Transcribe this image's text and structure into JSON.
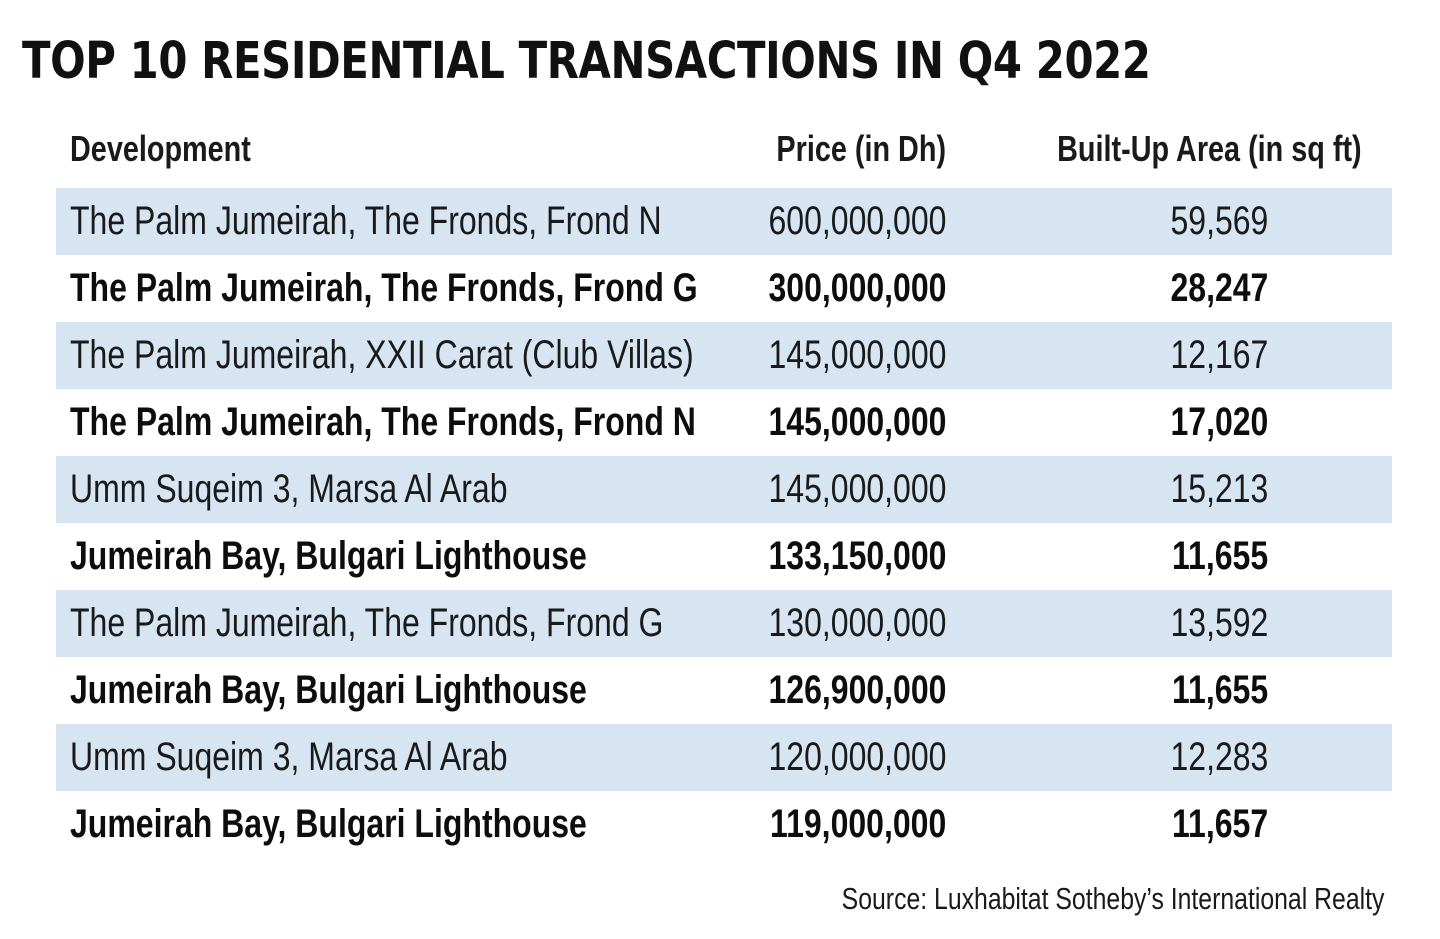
{
  "chart_data": {
    "type": "table",
    "title": "TOP 10 RESIDENTIAL TRANSACTIONS IN Q4 2022",
    "columns": [
      "Development",
      "Price (in Dh)",
      "Built-Up Area (in sq ft)"
    ],
    "rows": [
      {
        "development": "The Palm Jumeirah, The Fronds, Frond N",
        "price": "600,000,000",
        "area": "59,569"
      },
      {
        "development": "The Palm Jumeirah, The Fronds, Frond G",
        "price": "300,000,000",
        "area": "28,247"
      },
      {
        "development": "The Palm Jumeirah, XXII Carat (Club Villas)",
        "price": "145,000,000",
        "area": "12,167"
      },
      {
        "development": "The Palm Jumeirah, The Fronds, Frond N",
        "price": "145,000,000",
        "area": "17,020"
      },
      {
        "development": "Umm Suqeim 3, Marsa Al Arab",
        "price": "145,000,000",
        "area": "15,213"
      },
      {
        "development": "Jumeirah Bay, Bulgari Lighthouse",
        "price": "133,150,000",
        "area": "11,655"
      },
      {
        "development": "The Palm Jumeirah, The Fronds, Frond G",
        "price": "130,000,000",
        "area": "13,592"
      },
      {
        "development": "Jumeirah Bay, Bulgari Lighthouse",
        "price": "126,900,000",
        "area": "11,655"
      },
      {
        "development": "Umm Suqeim 3, Marsa Al Arab",
        "price": "120,000,000",
        "area": "12,283"
      },
      {
        "development": "Jumeirah Bay, Bulgari Lighthouse",
        "price": "119,000,000",
        "area": "11,657"
      }
    ],
    "source": "Source: Luxhabitat Sotheby’s International Realty"
  },
  "colors": {
    "row_shade": "#d7e4f2",
    "text": "#1a1a1a",
    "background": "#ffffff"
  }
}
